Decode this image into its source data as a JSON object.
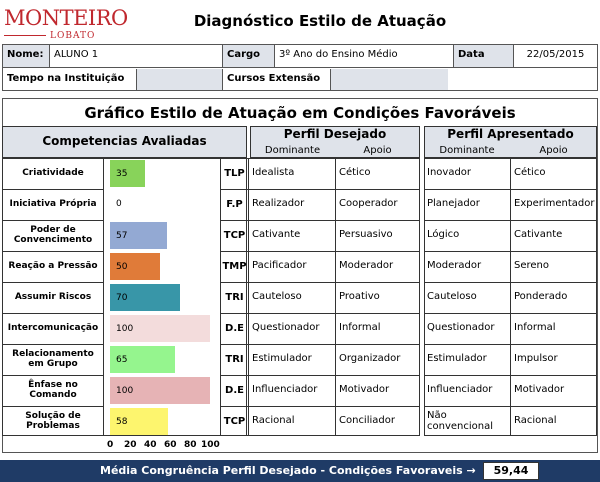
{
  "logo": {
    "main": "MONTEIRO",
    "sub": "LOBATO"
  },
  "title": "Diagnóstico Estilo de Atuação",
  "info": {
    "nome_label": "Nome:",
    "nome_value": "ALUNO 1",
    "cargo_label": "Cargo",
    "cargo_value": "3º Ano do Ensino Médio",
    "data_label": "Data",
    "data_value": "22/05/2015",
    "tempo_label": "Tempo na Instituição",
    "cursos_label": "Cursos Extensão"
  },
  "section_title": "Gráfico Estilo de Atuação em Condições Favoráveis",
  "headers": {
    "competencias": "Competencias Avaliadas",
    "perfil_desejado": "Perfil Desejado",
    "perfil_apresentado": "Perfil Apresentado",
    "dominante": "Dominante",
    "apoio": "Apoio"
  },
  "rows": [
    {
      "competencia": "Criatividade",
      "value": 35,
      "color": "#88d35a",
      "code": "TLP",
      "des_dom": "Idealista",
      "des_apo": "Cético",
      "apr_dom": "Inovador",
      "apr_apo": "Cético"
    },
    {
      "competencia": "Iniciativa Própria",
      "value": 0,
      "color": "#ffffff",
      "code": "F.P",
      "des_dom": "Realizador",
      "des_apo": "Cooperador",
      "apr_dom": "Planejador",
      "apr_apo": "Experimentador"
    },
    {
      "competencia": "Poder de Convencimento",
      "value": 57,
      "color": "#93a9d3",
      "code": "TCP",
      "des_dom": "Cativante",
      "des_apo": "Persuasivo",
      "apr_dom": "Lógico",
      "apr_apo": "Cativante"
    },
    {
      "competencia": "Reação a Pressão",
      "value": 50,
      "color": "#e07b39",
      "code": "TMP",
      "des_dom": "Pacificador",
      "des_apo": "Moderador",
      "apr_dom": "Moderador",
      "apr_apo": "Sereno"
    },
    {
      "competencia": "Assumir Riscos",
      "value": 70,
      "color": "#3896a8",
      "code": "TRI",
      "des_dom": "Cauteloso",
      "des_apo": "Proativo",
      "apr_dom": "Cauteloso",
      "apr_apo": "Ponderado"
    },
    {
      "competencia": "Intercomunicação",
      "value": 100,
      "color": "#f3dcdc",
      "code": "D.E",
      "des_dom": "Questionador",
      "des_apo": "Informal",
      "apr_dom": "Questionador",
      "apr_apo": "Informal"
    },
    {
      "competencia": "Relacionamento em Grupo",
      "value": 65,
      "color": "#95f58e",
      "code": "TRI",
      "des_dom": "Estimulador",
      "des_apo": "Organizador",
      "apr_dom": "Estimulador",
      "apr_apo": "Impulsor"
    },
    {
      "competencia": "Ênfase no Comando",
      "value": 100,
      "color": "#e6b3b5",
      "code": "D.E",
      "des_dom": "Influenciador",
      "des_apo": "Motivador",
      "apr_dom": "Influenciador",
      "apr_apo": "Motivador"
    },
    {
      "competencia": "Solução de Problemas",
      "value": 58,
      "color": "#fdf56e",
      "code": "TCP",
      "des_dom": "Racional",
      "des_apo": "Conciliador",
      "apr_dom": "Não convencional",
      "apr_apo": "Racional"
    }
  ],
  "axis_ticks": [
    "0",
    "20",
    "40",
    "60",
    "80",
    "100"
  ],
  "footer": {
    "label": "Média Congruência Perfil Desejado - Condições Favoraveis →",
    "value": "59,44"
  },
  "chart_data": {
    "type": "bar",
    "categories": [
      "Criatividade",
      "Iniciativa Própria",
      "Poder de Convencimento",
      "Reação a Pressão",
      "Assumir Riscos",
      "Intercomunicação",
      "Relacionamento em Grupo",
      "Ênfase no Comando",
      "Solução de Problemas"
    ],
    "values": [
      35,
      0,
      57,
      50,
      70,
      100,
      65,
      100,
      58
    ],
    "xlim": [
      0,
      100
    ]
  }
}
